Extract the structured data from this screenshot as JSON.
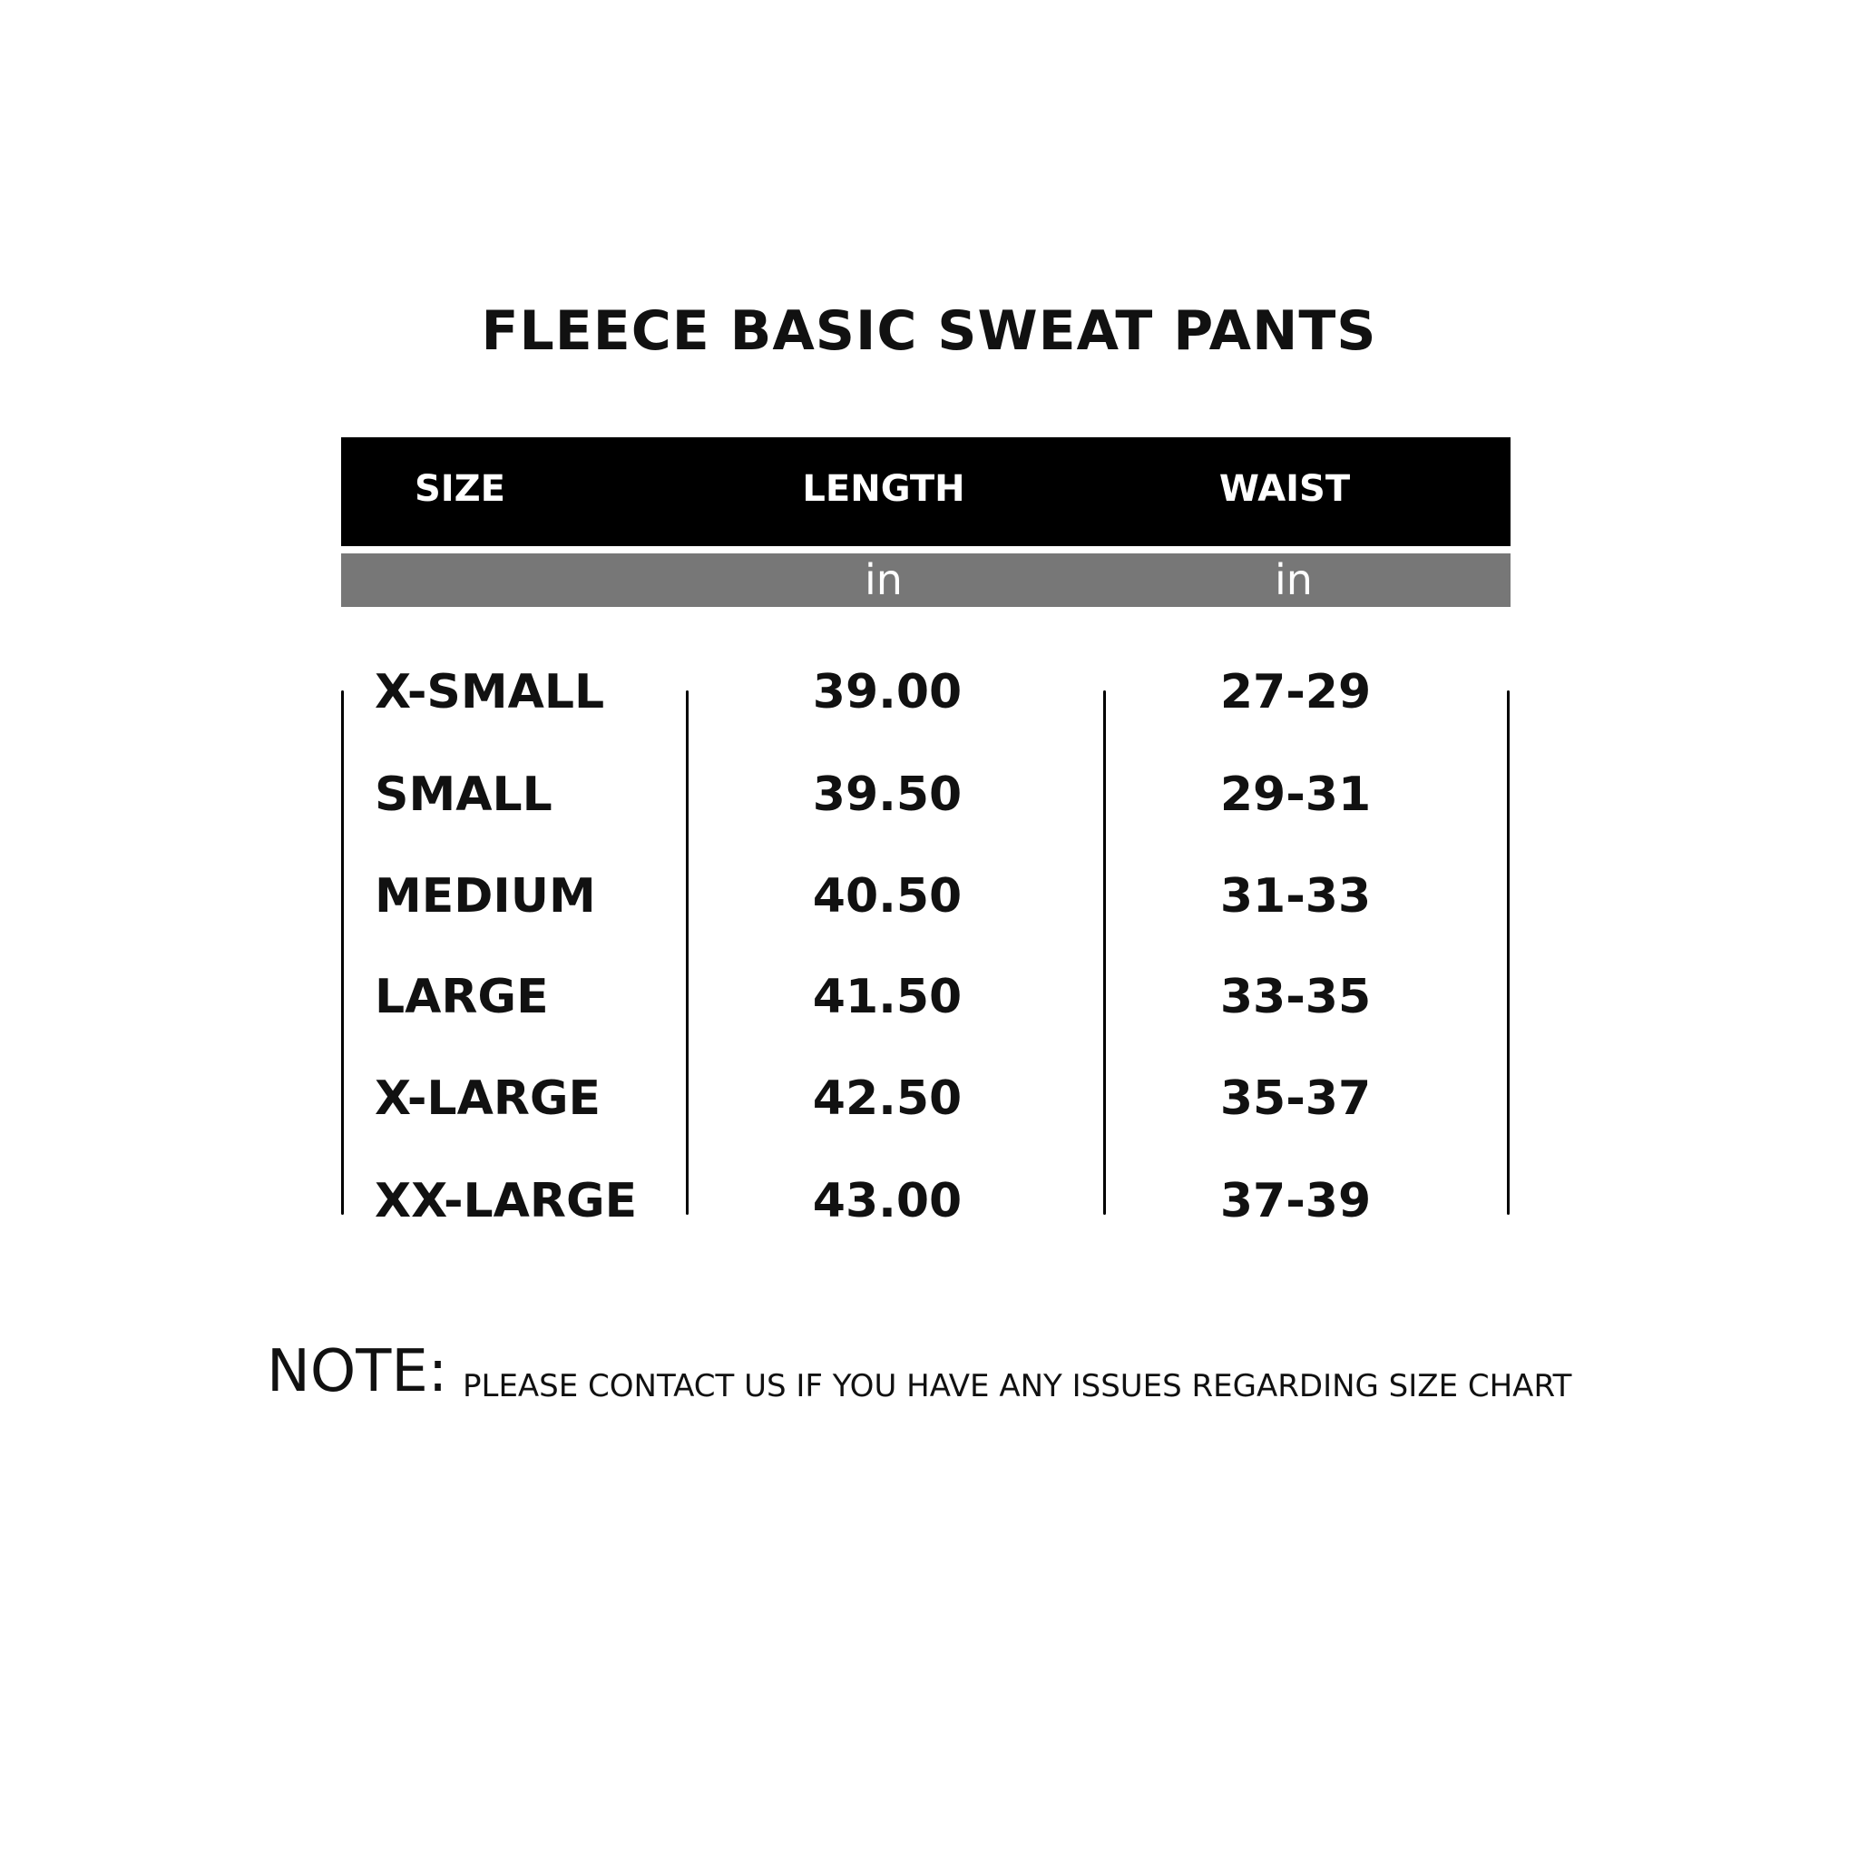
{
  "title": "FLEECE BASIC SWEAT PANTS",
  "table": {
    "headers": [
      "SIZE",
      "LENGTH",
      "WAIST"
    ],
    "units": [
      "",
      "in",
      "in"
    ],
    "rows": [
      {
        "size": "X-SMALL",
        "length": "39.00",
        "waist": "27-29"
      },
      {
        "size": "SMALL",
        "length": "39.50",
        "waist": "29-31"
      },
      {
        "size": "MEDIUM",
        "length": "40.50",
        "waist": "31-33"
      },
      {
        "size": "LARGE",
        "length": "41.50",
        "waist": "33-35"
      },
      {
        "size": "X-LARGE",
        "length": "42.50",
        "waist": "35-37"
      },
      {
        "size": "XX-LARGE",
        "length": "43.00",
        "waist": "37-39"
      }
    ]
  },
  "note": {
    "label": "NOTE:",
    "text": "PLEASE CONTACT US IF YOU HAVE ANY ISSUES REGARDING SIZE CHART"
  },
  "colors": {
    "header_bg": "#000000",
    "unit_bg": "#777777"
  }
}
